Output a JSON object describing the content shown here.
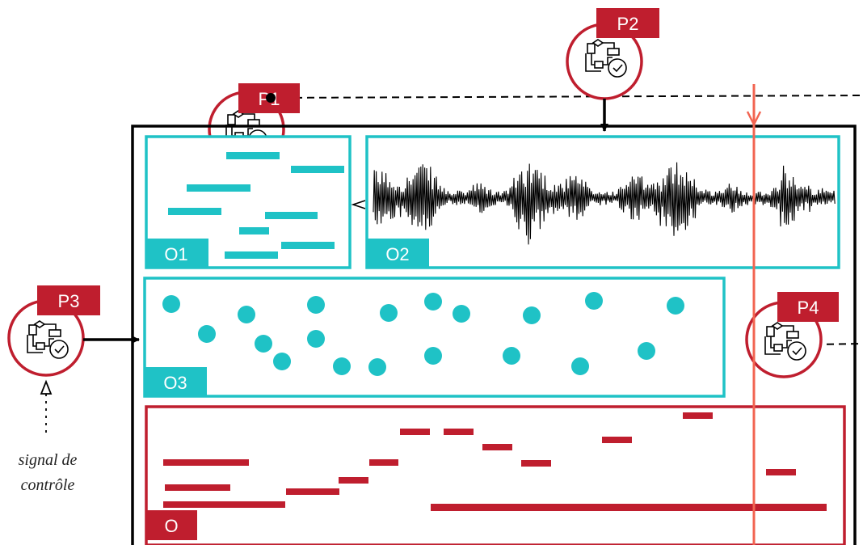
{
  "colors": {
    "teal": "#1fc2c6",
    "red": "#bf1e2e",
    "playhead": "#f26451",
    "black": "#000000"
  },
  "labels": {
    "o1": "O1",
    "o2": "O2",
    "o3": "O3",
    "o": "O"
  },
  "processes": {
    "p1": "P1",
    "p2": "P2",
    "p3": "P3",
    "p4": "P4",
    "icon": "flowchart-check-icon"
  },
  "control_signal": {
    "line1": "signal de",
    "line2": "contrôle"
  }
}
